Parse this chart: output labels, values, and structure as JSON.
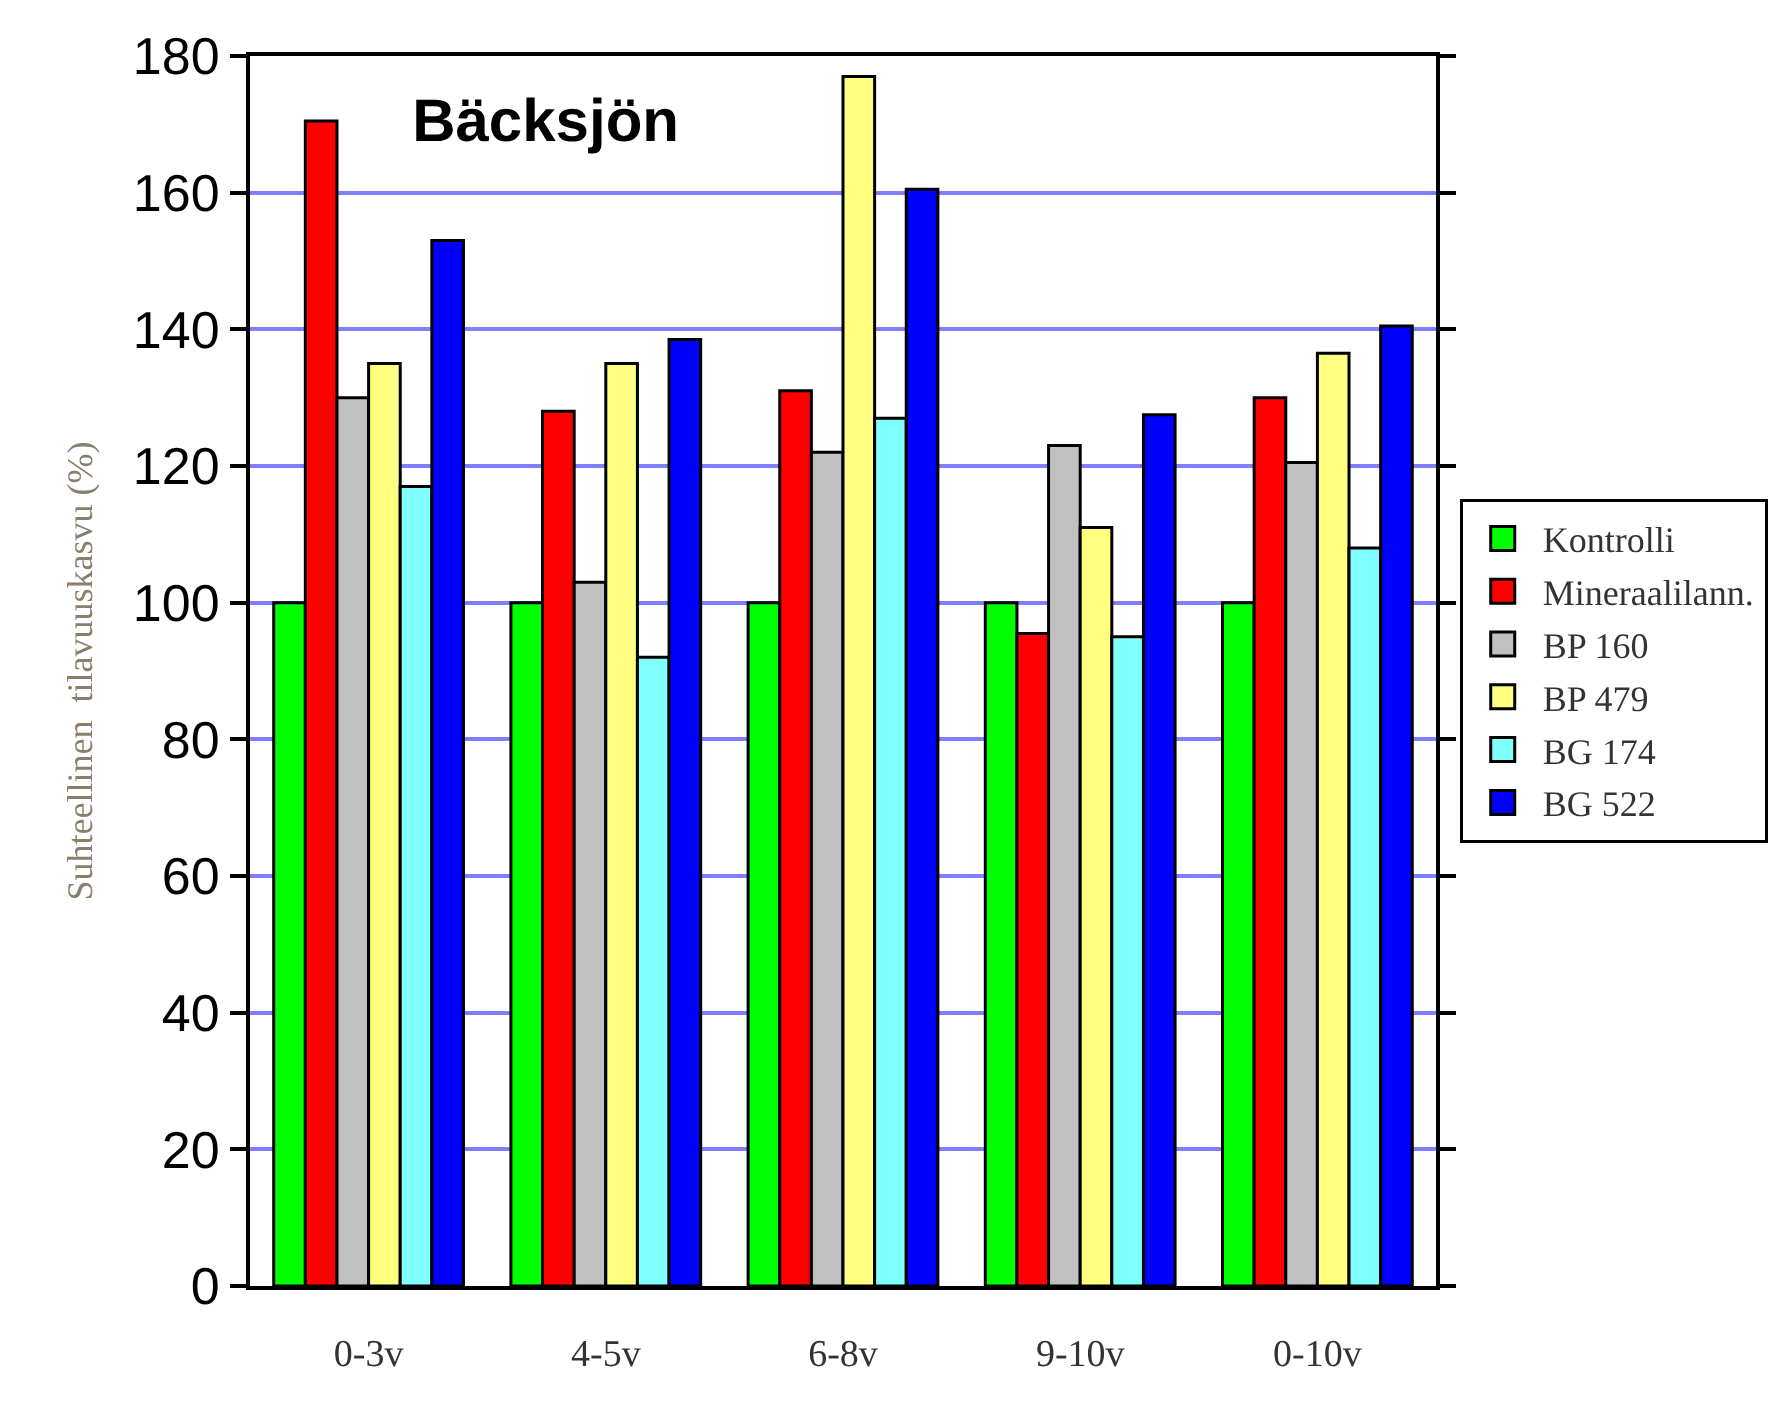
{
  "chart_data": {
    "type": "bar",
    "title": "Bäcksjön",
    "ylabel": "Suhteellinen  tilavuuskasvu (%)",
    "categories": [
      "0-3v",
      "4-5v",
      "6-8v",
      "9-10v",
      "0-10v"
    ],
    "series": [
      {
        "name": "Kontrolli",
        "color": "#00ff00",
        "values": [
          100,
          100,
          100,
          100,
          100
        ]
      },
      {
        "name": "Mineraalilann.",
        "color": "#ff0000",
        "values": [
          170.5,
          128,
          131,
          95.5,
          130
        ]
      },
      {
        "name": "BP 160",
        "color": "#c0c0c0",
        "values": [
          130,
          103,
          122,
          123,
          120.5
        ]
      },
      {
        "name": "BP 479",
        "color": "#ffff80",
        "values": [
          135,
          135,
          177,
          111,
          136.5
        ]
      },
      {
        "name": "BG 174",
        "color": "#80ffff",
        "values": [
          117,
          92,
          127,
          95,
          108
        ]
      },
      {
        "name": "BG 522",
        "color": "#0000ff",
        "values": [
          153,
          138.5,
          160.5,
          127.5,
          140.5
        ]
      }
    ],
    "ylim": [
      0,
      180
    ],
    "yticks": [
      0,
      20,
      40,
      60,
      80,
      100,
      120,
      140,
      160,
      180
    ],
    "grid": "y",
    "legend": "right"
  }
}
